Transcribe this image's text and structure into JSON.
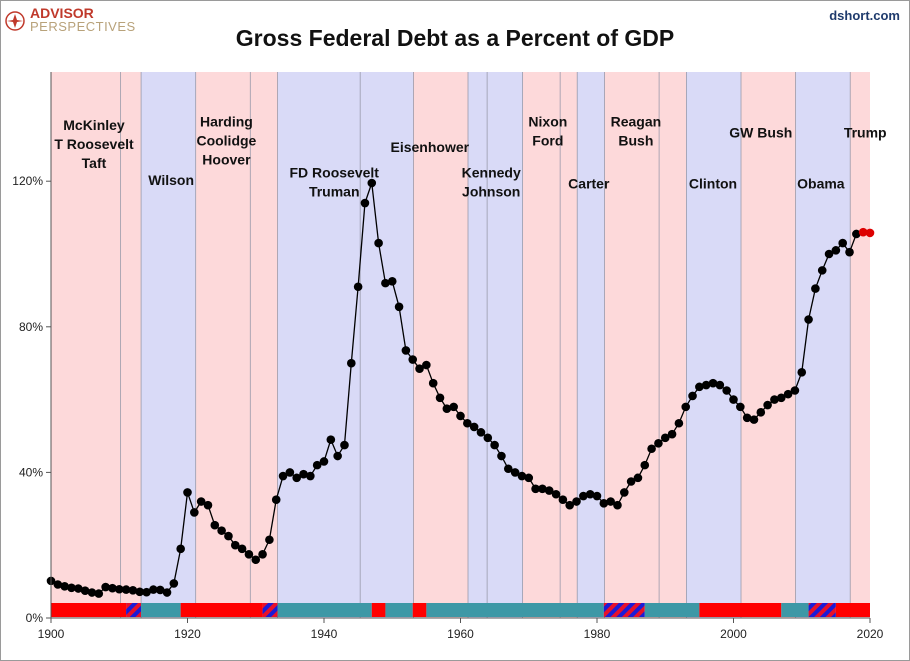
{
  "header": {
    "logo_line1": "ADVISOR",
    "logo_line2": "PERSPECTIVES",
    "site": "dshort.com"
  },
  "colors": {
    "republican_band": "#fdd9da",
    "democrat_band": "#d9daf7",
    "republican_bar": "#ff0000",
    "democrat_bar": "#3d98a6",
    "split_bar_a": "#1c1cd6",
    "split_bar_b": "#e8102a",
    "line": "#000000",
    "estimate_points": "#dd0000"
  },
  "chart_data": {
    "type": "line",
    "title": "Gross Federal Debt as a Percent of GDP",
    "xlabel": "",
    "ylabel": "",
    "xlim": [
      1900,
      2020
    ],
    "ylim": [
      0,
      150
    ],
    "x_ticks": [
      1900,
      1920,
      1940,
      1960,
      1980,
      2000,
      2020
    ],
    "y_ticks": [
      0,
      40,
      80,
      120
    ],
    "y_tick_labels": [
      "0%",
      "40%",
      "80%",
      "120%"
    ],
    "grid": "vertical lines at party changes",
    "series": [
      {
        "points": [
          [
            1900,
            10.2
          ],
          [
            1901,
            9.2
          ],
          [
            1902,
            8.7
          ],
          [
            1903,
            8.3
          ],
          [
            1904,
            8.1
          ],
          [
            1905,
            7.5
          ],
          [
            1906,
            7.0
          ],
          [
            1907,
            6.7
          ],
          [
            1908,
            8.5
          ],
          [
            1909,
            8.2
          ],
          [
            1910,
            7.9
          ],
          [
            1911,
            7.8
          ],
          [
            1912,
            7.6
          ],
          [
            1913,
            7.2
          ],
          [
            1914,
            7.1
          ],
          [
            1915,
            7.8
          ],
          [
            1916,
            7.7
          ],
          [
            1917,
            7.0
          ],
          [
            1918,
            9.5
          ],
          [
            1919,
            19.0
          ],
          [
            1920,
            34.5
          ],
          [
            1921,
            29.0
          ],
          [
            1922,
            32.0
          ],
          [
            1923,
            31.0
          ],
          [
            1924,
            25.5
          ],
          [
            1925,
            24.0
          ],
          [
            1926,
            22.5
          ],
          [
            1927,
            20.0
          ],
          [
            1928,
            19.0
          ],
          [
            1929,
            17.5
          ],
          [
            1930,
            16.0
          ],
          [
            1931,
            17.5
          ],
          [
            1932,
            21.5
          ],
          [
            1933,
            32.5
          ],
          [
            1934,
            39.0
          ],
          [
            1935,
            40.0
          ],
          [
            1936,
            38.5
          ],
          [
            1937,
            39.5
          ],
          [
            1938,
            39.0
          ],
          [
            1939,
            42.0
          ],
          [
            1940,
            43.0
          ],
          [
            1941,
            49.0
          ],
          [
            1942,
            44.5
          ],
          [
            1943,
            47.5
          ],
          [
            1944,
            70.0
          ],
          [
            1945,
            91.0
          ],
          [
            1946,
            114.0
          ],
          [
            1947,
            119.5
          ],
          [
            1948,
            103.0
          ],
          [
            1949,
            92.0
          ],
          [
            1950,
            92.5
          ],
          [
            1951,
            85.5
          ],
          [
            1952,
            73.5
          ],
          [
            1953,
            71.0
          ],
          [
            1954,
            68.5
          ],
          [
            1955,
            69.5
          ],
          [
            1956,
            64.5
          ],
          [
            1957,
            60.5
          ],
          [
            1958,
            57.5
          ],
          [
            1959,
            58.0
          ],
          [
            1960,
            55.5
          ],
          [
            1961,
            53.5
          ],
          [
            1962,
            52.5
          ],
          [
            1963,
            51.0
          ],
          [
            1964,
            49.5
          ],
          [
            1965,
            47.5
          ],
          [
            1966,
            44.5
          ],
          [
            1967,
            41.0
          ],
          [
            1968,
            40.0
          ],
          [
            1969,
            39.0
          ],
          [
            1970,
            38.5
          ],
          [
            1971,
            35.5
          ],
          [
            1972,
            35.5
          ],
          [
            1973,
            35.0
          ],
          [
            1974,
            34.0
          ],
          [
            1975,
            32.5
          ],
          [
            1976,
            31.0
          ],
          [
            1977,
            32.0
          ],
          [
            1978,
            33.5
          ],
          [
            1979,
            34.0
          ],
          [
            1980,
            33.5
          ],
          [
            1981,
            31.5
          ],
          [
            1982,
            32.0
          ],
          [
            1983,
            31.0
          ],
          [
            1984,
            34.5
          ],
          [
            1985,
            37.5
          ],
          [
            1986,
            38.5
          ],
          [
            1987,
            42.0
          ],
          [
            1988,
            46.5
          ],
          [
            1989,
            48.0
          ],
          [
            1990,
            49.5
          ],
          [
            1991,
            50.5
          ],
          [
            1992,
            53.5
          ],
          [
            1993,
            58.0
          ],
          [
            1994,
            61.0
          ],
          [
            1995,
            63.5
          ],
          [
            1996,
            64.0
          ],
          [
            1997,
            64.5
          ],
          [
            1998,
            64.0
          ],
          [
            1999,
            62.5
          ],
          [
            2000,
            60.0
          ],
          [
            2001,
            58.0
          ],
          [
            2002,
            55.0
          ],
          [
            2003,
            54.5
          ],
          [
            2004,
            56.5
          ],
          [
            2005,
            58.5
          ],
          [
            2006,
            60.0
          ],
          [
            2007,
            60.5
          ],
          [
            2008,
            61.5
          ],
          [
            2009,
            62.5
          ],
          [
            2010,
            67.5
          ],
          [
            2011,
            82.0
          ],
          [
            2012,
            90.5
          ],
          [
            2013,
            95.5
          ],
          [
            2014,
            100.0
          ],
          [
            2015,
            101.0
          ],
          [
            2016,
            103.0
          ],
          [
            2017,
            100.5
          ],
          [
            2018,
            105.5
          ]
        ]
      },
      {
        "points": [
          [
            2019,
            106.0
          ],
          [
            2020,
            105.8
          ]
        ]
      }
    ],
    "party_bands": [
      {
        "start": 1900,
        "end": 1913.2,
        "party": "R"
      },
      {
        "start": 1913.2,
        "end": 1921.2,
        "party": "D"
      },
      {
        "start": 1921.2,
        "end": 1933.2,
        "party": "R"
      },
      {
        "start": 1933.2,
        "end": 1953.1,
        "party": "D"
      },
      {
        "start": 1953.1,
        "end": 1961.1,
        "party": "R"
      },
      {
        "start": 1961.1,
        "end": 1969.1,
        "party": "D"
      },
      {
        "start": 1969.1,
        "end": 1977.1,
        "party": "R"
      },
      {
        "start": 1977.1,
        "end": 1981.1,
        "party": "D"
      },
      {
        "start": 1981.1,
        "end": 1993.1,
        "party": "R"
      },
      {
        "start": 1993.1,
        "end": 2001.1,
        "party": "D"
      },
      {
        "start": 2001.1,
        "end": 2009.1,
        "party": "R"
      },
      {
        "start": 2009.1,
        "end": 2017.1,
        "party": "D"
      },
      {
        "start": 2017.1,
        "end": 2020,
        "party": "R"
      }
    ],
    "congress_bar": [
      {
        "start": 1900,
        "end": 1911,
        "party": "R"
      },
      {
        "start": 1911,
        "end": 1913.2,
        "party": "split"
      },
      {
        "start": 1913.2,
        "end": 1919,
        "party": "D"
      },
      {
        "start": 1919,
        "end": 1931,
        "party": "R"
      },
      {
        "start": 1931,
        "end": 1933.2,
        "party": "split"
      },
      {
        "start": 1933.2,
        "end": 1947,
        "party": "D"
      },
      {
        "start": 1947,
        "end": 1949,
        "party": "R"
      },
      {
        "start": 1949,
        "end": 1953,
        "party": "D"
      },
      {
        "start": 1953,
        "end": 1955,
        "party": "R"
      },
      {
        "start": 1955,
        "end": 1981,
        "party": "D"
      },
      {
        "start": 1981,
        "end": 1987,
        "party": "split"
      },
      {
        "start": 1987,
        "end": 1995,
        "party": "D"
      },
      {
        "start": 1995,
        "end": 2007,
        "party": "R"
      },
      {
        "start": 2007,
        "end": 2011,
        "party": "D"
      },
      {
        "start": 2011,
        "end": 2015,
        "party": "split"
      },
      {
        "start": 2015,
        "end": 2020,
        "party": "R"
      }
    ],
    "annotations": [
      {
        "lines": [
          "McKinley",
          "T Roosevelt",
          "Taft"
        ],
        "x": 1906.3,
        "y": 134
      },
      {
        "lines": [
          "Wilson"
        ],
        "x": 1917.6,
        "y": 119
      },
      {
        "lines": [
          "Harding",
          "Coolidge",
          "Hoover"
        ],
        "x": 1925.7,
        "y": 135
      },
      {
        "lines": [
          "FD Roosevelt",
          "Truman"
        ],
        "x": 1941.5,
        "y": 121
      },
      {
        "lines": [
          "Eisenhower"
        ],
        "x": 1955.5,
        "y": 128
      },
      {
        "lines": [
          "Kennedy",
          "Johnson"
        ],
        "x": 1964.5,
        "y": 121
      },
      {
        "lines": [
          "Nixon",
          "Ford"
        ],
        "x": 1972.8,
        "y": 135
      },
      {
        "lines": [
          "Carter"
        ],
        "x": 1978.8,
        "y": 118
      },
      {
        "lines": [
          "Reagan",
          "Bush"
        ],
        "x": 1985.7,
        "y": 135
      },
      {
        "lines": [
          "Clinton"
        ],
        "x": 1997.0,
        "y": 118
      },
      {
        "lines": [
          "GW Bush"
        ],
        "x": 2004.0,
        "y": 132
      },
      {
        "lines": [
          "Obama"
        ],
        "x": 2012.8,
        "y": 118
      },
      {
        "lines": [
          "Trump"
        ],
        "x": 2019.3,
        "y": 132
      }
    ]
  }
}
